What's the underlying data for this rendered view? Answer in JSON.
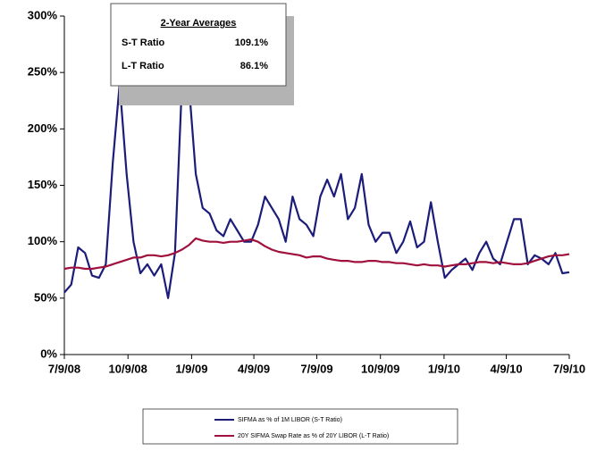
{
  "chart_data": {
    "type": "line",
    "x": [
      0,
      10,
      20,
      30,
      40,
      50,
      60,
      70,
      80,
      90,
      100,
      110,
      120,
      130,
      140,
      150,
      160,
      170,
      180,
      190,
      200,
      210,
      220,
      230,
      240,
      250,
      260,
      270,
      280,
      290,
      300,
      310,
      320,
      330,
      340,
      350,
      360,
      370,
      380,
      390,
      400,
      410,
      420,
      430,
      440,
      450,
      460,
      470,
      480,
      490,
      500,
      510,
      520,
      530,
      540,
      550,
      560,
      570,
      580,
      590,
      600,
      610,
      620,
      630,
      640,
      650,
      660,
      670,
      680,
      690,
      700,
      710,
      720,
      730
    ],
    "series": [
      {
        "name": "SIFMA as % of 1M LIBOR (S-T Ratio)",
        "color": "#1c1c7a",
        "values": [
          55,
          62,
          95,
          90,
          70,
          68,
          80,
          170,
          240,
          160,
          100,
          72,
          80,
          70,
          80,
          50,
          90,
          240,
          240,
          160,
          130,
          125,
          110,
          105,
          120,
          110,
          100,
          100,
          115,
          140,
          130,
          120,
          100,
          140,
          120,
          115,
          105,
          140,
          155,
          140,
          160,
          120,
          130,
          160,
          115,
          100,
          108,
          108,
          90,
          100,
          118,
          95,
          100,
          135,
          100,
          68,
          75,
          80,
          85,
          75,
          90,
          100,
          85,
          80,
          100,
          120,
          120,
          80,
          88,
          85,
          80,
          90,
          72,
          73
        ]
      },
      {
        "name": "20Y SIFMA Swap Rate as % of 20Y LIBOR (L-T Ratio)",
        "color": "#a0103c",
        "values": [
          76,
          77,
          77,
          76,
          76,
          77,
          78,
          80,
          82,
          84,
          86,
          86,
          88,
          88,
          87,
          88,
          90,
          93,
          97,
          103,
          101,
          100,
          100,
          99,
          100,
          100,
          101,
          102,
          100,
          96,
          93,
          91,
          90,
          89,
          88,
          86,
          87,
          87,
          85,
          84,
          83,
          83,
          82,
          82,
          83,
          83,
          82,
          82,
          81,
          81,
          80,
          79,
          80,
          79,
          79,
          78,
          79,
          80,
          80,
          81,
          82,
          82,
          81,
          82,
          81,
          80,
          80,
          81,
          83,
          85,
          87,
          88,
          88,
          89
        ]
      }
    ],
    "xlim": [
      0,
      730
    ],
    "xticks": [
      {
        "value": 0,
        "label": "7/9/08"
      },
      {
        "value": 92,
        "label": "10/9/08"
      },
      {
        "value": 184,
        "label": "1/9/09"
      },
      {
        "value": 274,
        "label": "4/9/09"
      },
      {
        "value": 365,
        "label": "7/9/09"
      },
      {
        "value": 457,
        "label": "10/9/09"
      },
      {
        "value": 549,
        "label": "1/9/10"
      },
      {
        "value": 639,
        "label": "4/9/10"
      },
      {
        "value": 730,
        "label": "7/9/10"
      }
    ],
    "ylim": [
      0,
      300
    ],
    "yticks": [
      {
        "value": 0,
        "label": "0%"
      },
      {
        "value": 50,
        "label": "50%"
      },
      {
        "value": 100,
        "label": "100%"
      },
      {
        "value": 150,
        "label": "150%"
      },
      {
        "value": 200,
        "label": "200%"
      },
      {
        "value": 250,
        "label": "250%"
      },
      {
        "value": 300,
        "label": "300%"
      }
    ],
    "inset": {
      "title": "2-Year Averages",
      "rows": [
        {
          "label": "S-T Ratio",
          "value": "109.1%"
        },
        {
          "label": "L-T Ratio",
          "value": "86.1%"
        }
      ]
    }
  }
}
